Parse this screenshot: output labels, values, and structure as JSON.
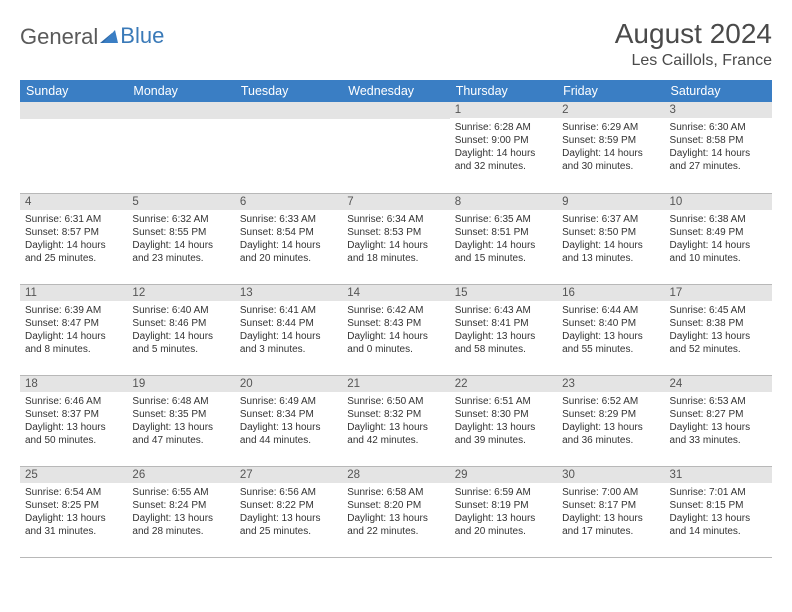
{
  "brand": {
    "word1": "General",
    "word2": "Blue"
  },
  "title": {
    "month": "August 2024",
    "location": "Les Caillols, France"
  },
  "calendar": {
    "type": "table",
    "colors": {
      "header_bg": "#3a7ec4",
      "header_text": "#ffffff",
      "daynum_bg": "#e4e4e4",
      "daynum_text": "#555555",
      "body_text": "#333333",
      "border": "#b8b8b8",
      "page_bg": "#ffffff",
      "brand_gray": "#5a5a5a",
      "brand_blue": "#3a7ab8"
    },
    "fonts": {
      "title_month_size": 28,
      "title_location_size": 16,
      "header_size": 12.5,
      "daynum_size": 11.5,
      "body_size": 10
    },
    "headers": [
      "Sunday",
      "Monday",
      "Tuesday",
      "Wednesday",
      "Thursday",
      "Friday",
      "Saturday"
    ],
    "weeks": [
      [
        {
          "empty": true
        },
        {
          "empty": true
        },
        {
          "empty": true
        },
        {
          "empty": true
        },
        {
          "day": "1",
          "sunrise": "Sunrise: 6:28 AM",
          "sunset": "Sunset: 9:00 PM",
          "daylight1": "Daylight: 14 hours",
          "daylight2": "and 32 minutes."
        },
        {
          "day": "2",
          "sunrise": "Sunrise: 6:29 AM",
          "sunset": "Sunset: 8:59 PM",
          "daylight1": "Daylight: 14 hours",
          "daylight2": "and 30 minutes."
        },
        {
          "day": "3",
          "sunrise": "Sunrise: 6:30 AM",
          "sunset": "Sunset: 8:58 PM",
          "daylight1": "Daylight: 14 hours",
          "daylight2": "and 27 minutes."
        }
      ],
      [
        {
          "day": "4",
          "sunrise": "Sunrise: 6:31 AM",
          "sunset": "Sunset: 8:57 PM",
          "daylight1": "Daylight: 14 hours",
          "daylight2": "and 25 minutes."
        },
        {
          "day": "5",
          "sunrise": "Sunrise: 6:32 AM",
          "sunset": "Sunset: 8:55 PM",
          "daylight1": "Daylight: 14 hours",
          "daylight2": "and 23 minutes."
        },
        {
          "day": "6",
          "sunrise": "Sunrise: 6:33 AM",
          "sunset": "Sunset: 8:54 PM",
          "daylight1": "Daylight: 14 hours",
          "daylight2": "and 20 minutes."
        },
        {
          "day": "7",
          "sunrise": "Sunrise: 6:34 AM",
          "sunset": "Sunset: 8:53 PM",
          "daylight1": "Daylight: 14 hours",
          "daylight2": "and 18 minutes."
        },
        {
          "day": "8",
          "sunrise": "Sunrise: 6:35 AM",
          "sunset": "Sunset: 8:51 PM",
          "daylight1": "Daylight: 14 hours",
          "daylight2": "and 15 minutes."
        },
        {
          "day": "9",
          "sunrise": "Sunrise: 6:37 AM",
          "sunset": "Sunset: 8:50 PM",
          "daylight1": "Daylight: 14 hours",
          "daylight2": "and 13 minutes."
        },
        {
          "day": "10",
          "sunrise": "Sunrise: 6:38 AM",
          "sunset": "Sunset: 8:49 PM",
          "daylight1": "Daylight: 14 hours",
          "daylight2": "and 10 minutes."
        }
      ],
      [
        {
          "day": "11",
          "sunrise": "Sunrise: 6:39 AM",
          "sunset": "Sunset: 8:47 PM",
          "daylight1": "Daylight: 14 hours",
          "daylight2": "and 8 minutes."
        },
        {
          "day": "12",
          "sunrise": "Sunrise: 6:40 AM",
          "sunset": "Sunset: 8:46 PM",
          "daylight1": "Daylight: 14 hours",
          "daylight2": "and 5 minutes."
        },
        {
          "day": "13",
          "sunrise": "Sunrise: 6:41 AM",
          "sunset": "Sunset: 8:44 PM",
          "daylight1": "Daylight: 14 hours",
          "daylight2": "and 3 minutes."
        },
        {
          "day": "14",
          "sunrise": "Sunrise: 6:42 AM",
          "sunset": "Sunset: 8:43 PM",
          "daylight1": "Daylight: 14 hours",
          "daylight2": "and 0 minutes."
        },
        {
          "day": "15",
          "sunrise": "Sunrise: 6:43 AM",
          "sunset": "Sunset: 8:41 PM",
          "daylight1": "Daylight: 13 hours",
          "daylight2": "and 58 minutes."
        },
        {
          "day": "16",
          "sunrise": "Sunrise: 6:44 AM",
          "sunset": "Sunset: 8:40 PM",
          "daylight1": "Daylight: 13 hours",
          "daylight2": "and 55 minutes."
        },
        {
          "day": "17",
          "sunrise": "Sunrise: 6:45 AM",
          "sunset": "Sunset: 8:38 PM",
          "daylight1": "Daylight: 13 hours",
          "daylight2": "and 52 minutes."
        }
      ],
      [
        {
          "day": "18",
          "sunrise": "Sunrise: 6:46 AM",
          "sunset": "Sunset: 8:37 PM",
          "daylight1": "Daylight: 13 hours",
          "daylight2": "and 50 minutes."
        },
        {
          "day": "19",
          "sunrise": "Sunrise: 6:48 AM",
          "sunset": "Sunset: 8:35 PM",
          "daylight1": "Daylight: 13 hours",
          "daylight2": "and 47 minutes."
        },
        {
          "day": "20",
          "sunrise": "Sunrise: 6:49 AM",
          "sunset": "Sunset: 8:34 PM",
          "daylight1": "Daylight: 13 hours",
          "daylight2": "and 44 minutes."
        },
        {
          "day": "21",
          "sunrise": "Sunrise: 6:50 AM",
          "sunset": "Sunset: 8:32 PM",
          "daylight1": "Daylight: 13 hours",
          "daylight2": "and 42 minutes."
        },
        {
          "day": "22",
          "sunrise": "Sunrise: 6:51 AM",
          "sunset": "Sunset: 8:30 PM",
          "daylight1": "Daylight: 13 hours",
          "daylight2": "and 39 minutes."
        },
        {
          "day": "23",
          "sunrise": "Sunrise: 6:52 AM",
          "sunset": "Sunset: 8:29 PM",
          "daylight1": "Daylight: 13 hours",
          "daylight2": "and 36 minutes."
        },
        {
          "day": "24",
          "sunrise": "Sunrise: 6:53 AM",
          "sunset": "Sunset: 8:27 PM",
          "daylight1": "Daylight: 13 hours",
          "daylight2": "and 33 minutes."
        }
      ],
      [
        {
          "day": "25",
          "sunrise": "Sunrise: 6:54 AM",
          "sunset": "Sunset: 8:25 PM",
          "daylight1": "Daylight: 13 hours",
          "daylight2": "and 31 minutes."
        },
        {
          "day": "26",
          "sunrise": "Sunrise: 6:55 AM",
          "sunset": "Sunset: 8:24 PM",
          "daylight1": "Daylight: 13 hours",
          "daylight2": "and 28 minutes."
        },
        {
          "day": "27",
          "sunrise": "Sunrise: 6:56 AM",
          "sunset": "Sunset: 8:22 PM",
          "daylight1": "Daylight: 13 hours",
          "daylight2": "and 25 minutes."
        },
        {
          "day": "28",
          "sunrise": "Sunrise: 6:58 AM",
          "sunset": "Sunset: 8:20 PM",
          "daylight1": "Daylight: 13 hours",
          "daylight2": "and 22 minutes."
        },
        {
          "day": "29",
          "sunrise": "Sunrise: 6:59 AM",
          "sunset": "Sunset: 8:19 PM",
          "daylight1": "Daylight: 13 hours",
          "daylight2": "and 20 minutes."
        },
        {
          "day": "30",
          "sunrise": "Sunrise: 7:00 AM",
          "sunset": "Sunset: 8:17 PM",
          "daylight1": "Daylight: 13 hours",
          "daylight2": "and 17 minutes."
        },
        {
          "day": "31",
          "sunrise": "Sunrise: 7:01 AM",
          "sunset": "Sunset: 8:15 PM",
          "daylight1": "Daylight: 13 hours",
          "daylight2": "and 14 minutes."
        }
      ]
    ]
  }
}
